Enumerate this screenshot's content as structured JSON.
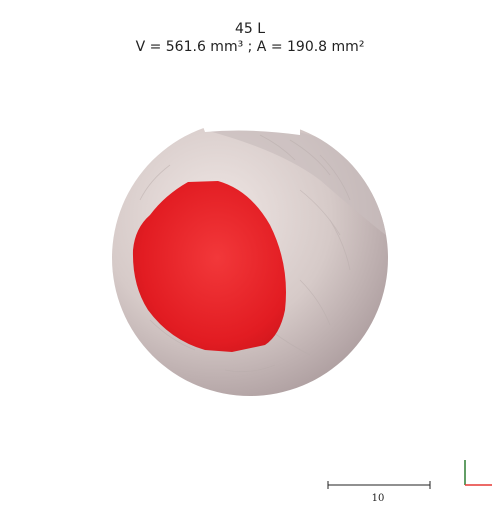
{
  "header": {
    "label": "45 L",
    "measurements": "V = 561.6 mm³ ; A = 190.8 mm²"
  },
  "scale_bar": {
    "label": "10"
  },
  "colors": {
    "background": "#ffffff",
    "specimen": "#d9cfcd",
    "lesion": "#e21c22",
    "axis_x": "#e53935",
    "axis_y": "#2e7d32"
  }
}
